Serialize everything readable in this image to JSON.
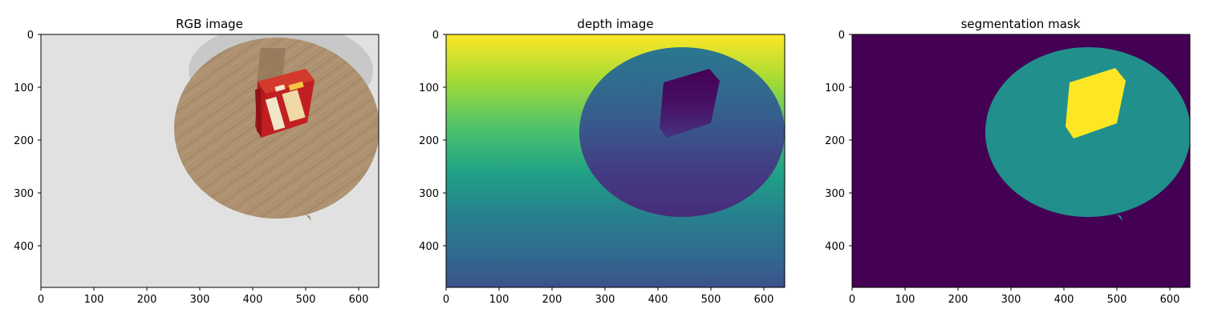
{
  "panels": [
    {
      "title": "RGB image",
      "x_ticks": [
        "0",
        "100",
        "200",
        "300",
        "400",
        "500",
        "600"
      ],
      "y_ticks": [
        "0",
        "100",
        "200",
        "300",
        "400"
      ],
      "content": "rgb"
    },
    {
      "title": "depth image",
      "x_ticks": [
        "0",
        "100",
        "200",
        "300",
        "400",
        "500",
        "600"
      ],
      "y_ticks": [
        "0",
        "100",
        "200",
        "300",
        "400"
      ],
      "content": "depth"
    },
    {
      "title": "segmentation mask",
      "x_ticks": [
        "0",
        "100",
        "200",
        "300",
        "400",
        "500",
        "600"
      ],
      "y_ticks": [
        "0",
        "100",
        "200",
        "300",
        "400"
      ],
      "content": "segmentation"
    }
  ],
  "colors": {
    "rgb_background": "#e1e1e1",
    "table_wood": "#ad9170",
    "table_shadow": "#c8c8c8",
    "box_red": "#b5191c",
    "seg_background": "#440154",
    "seg_table": "#21908d",
    "seg_object": "#fde725"
  }
}
